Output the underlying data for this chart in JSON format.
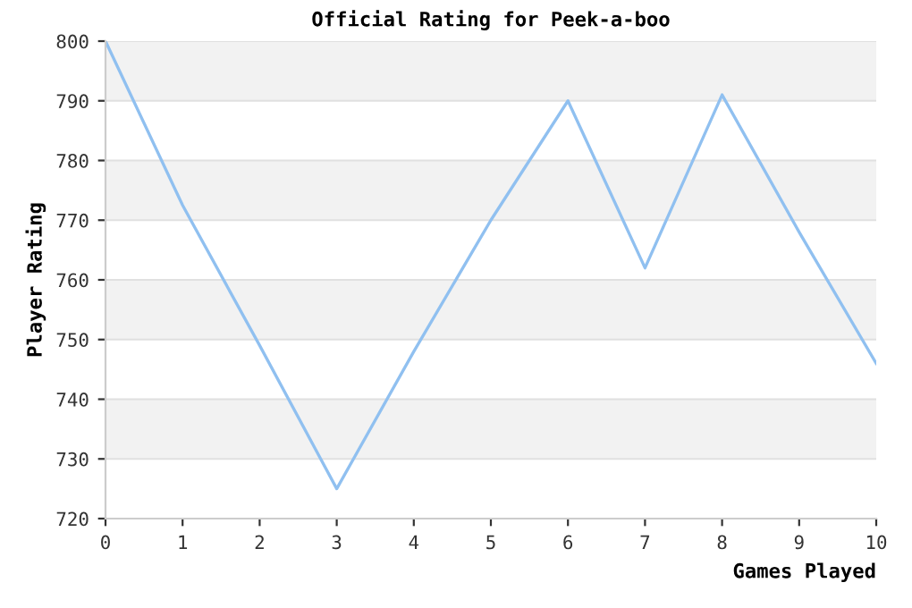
{
  "chart_data": {
    "type": "line",
    "title": "Official Rating for Peek-a-boo",
    "xlabel": "Games Played",
    "ylabel": "Player Rating",
    "x": [
      0,
      1,
      2,
      3,
      4,
      5,
      6,
      7,
      8,
      9,
      10
    ],
    "series": [
      {
        "color": "#90c0f0",
        "values": [
          800,
          772.5,
          749,
          725,
          748,
          770,
          790,
          762,
          791,
          768,
          746
        ]
      }
    ],
    "xlim": [
      0,
      10
    ],
    "xticks": [
      0,
      1,
      2,
      3,
      4,
      5,
      6,
      7,
      8,
      9,
      10
    ],
    "ylim": [
      720,
      800
    ],
    "yticks": [
      720,
      730,
      740,
      750,
      760,
      770,
      780,
      790,
      800
    ],
    "grid": "y",
    "marker": "none",
    "line_style": "solid",
    "legend": false
  }
}
